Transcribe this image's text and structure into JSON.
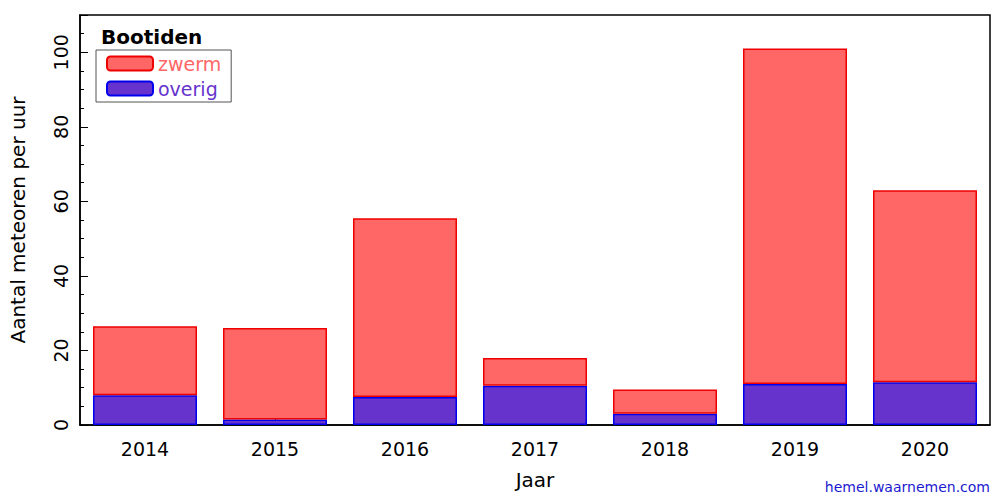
{
  "chart_data": {
    "type": "bar",
    "title": "Bootiden",
    "x_label": "Jaar",
    "y_label": "Aantal meteoren per uur",
    "categories": [
      "2014",
      "2015",
      "2016",
      "2017",
      "2018",
      "2019",
      "2020"
    ],
    "series": [
      {
        "name": "zwerm",
        "color": "#ff6666",
        "values": [
          18.5,
          24.5,
          48,
          7.5,
          6.5,
          90,
          51.5
        ]
      },
      {
        "name": "overig",
        "color": "#6633cc",
        "values": [
          8,
          1.5,
          7.5,
          10.5,
          3,
          11,
          11.5
        ]
      }
    ],
    "stacked": true,
    "ylim": [
      0,
      110
    ],
    "yticks": [
      0,
      20,
      40,
      60,
      80,
      100
    ],
    "legend": "upper left",
    "grid": false,
    "annotations": [
      "hemel.waarnemen.com"
    ]
  }
}
